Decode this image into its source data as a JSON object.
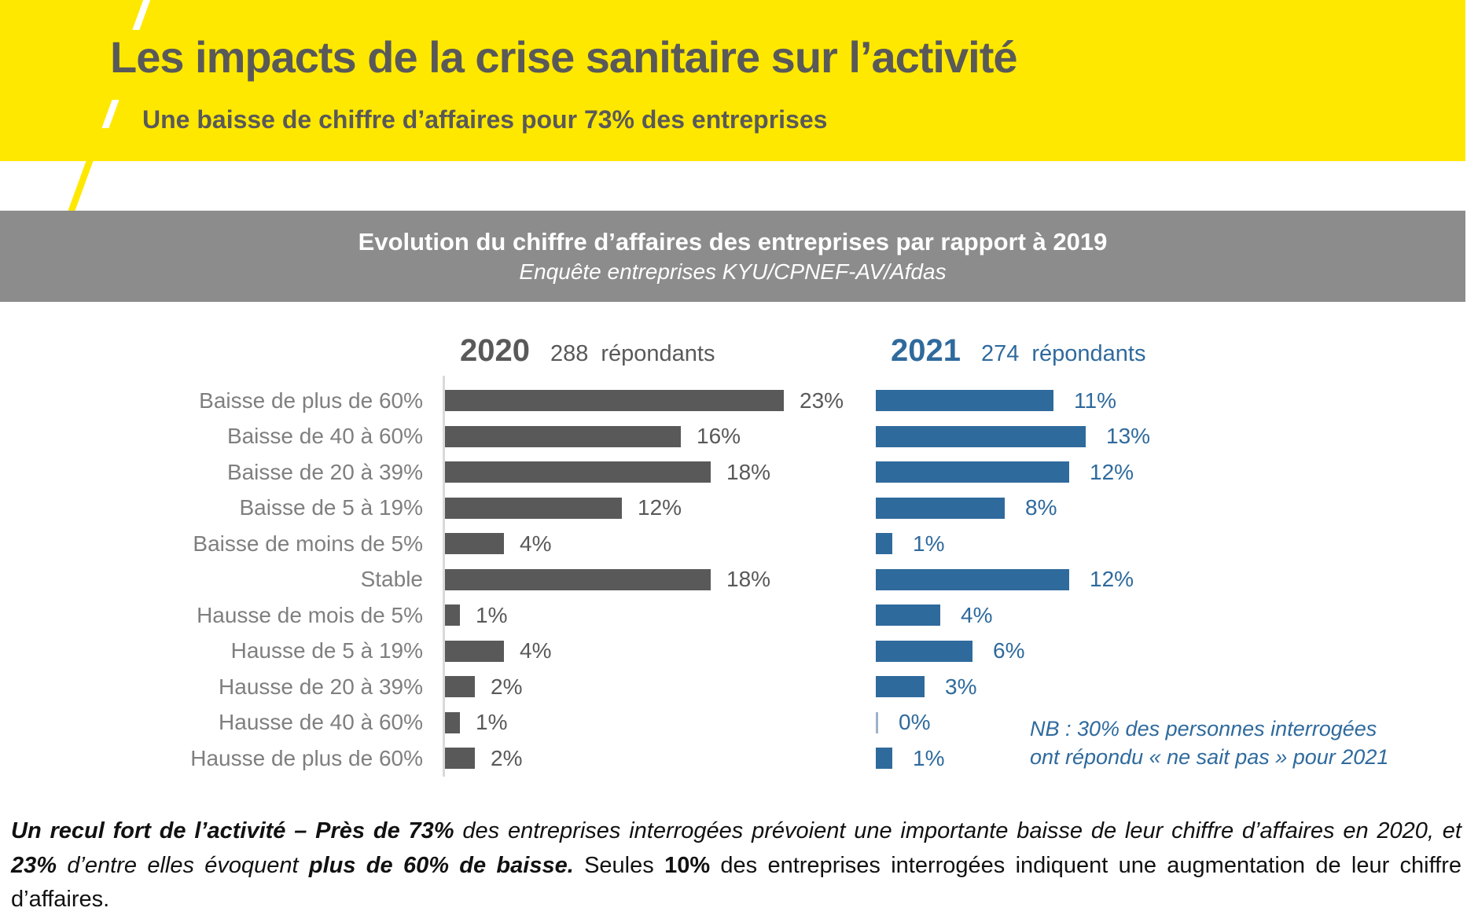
{
  "header": {
    "title": "Les impacts de la crise sanitaire sur l’activité",
    "subtitle": "Une baisse de chiffre d’affaires pour 73% des entreprises"
  },
  "banner": {
    "title": "Evolution du chiffre d’affaires des entreprises par rapport à 2019",
    "subtitle": "Enquête entreprises KYU/CPNEF-AV/Afdas"
  },
  "columns": {
    "y2020": {
      "year": "2020",
      "count": "288",
      "unit": "répondants"
    },
    "y2021": {
      "year": "2021",
      "count": "274",
      "unit": "répondants"
    }
  },
  "note": {
    "line1": "NB : 30% des personnes interrogées",
    "line2": "ont répondu « ne sait pas » pour 2021"
  },
  "chart_data": {
    "type": "bar",
    "orientation": "horizontal",
    "title": "Evolution du chiffre d’affaires des entreprises par rapport à 2019",
    "subtitle": "Enquête entreprises KYU/CPNEF-AV/Afdas",
    "value_suffix": "%",
    "categories": [
      "Baisse de plus de 60%",
      "Baisse de 40 à 60%",
      "Baisse de 20 à 39%",
      "Baisse de 5 à 19%",
      "Baisse de moins de 5%",
      "Stable",
      "Hausse de mois de 5%",
      "Hausse de 5 à 19%",
      "Hausse de 20 à 39%",
      "Hausse de 40 à 60%",
      "Hausse de plus de 60%"
    ],
    "series": [
      {
        "name": "2020",
        "respondents": 288,
        "color": "#595959",
        "values": [
          23,
          16,
          18,
          12,
          4,
          18,
          1,
          4,
          2,
          1,
          2
        ]
      },
      {
        "name": "2021",
        "respondents": 274,
        "color": "#2F6A9D",
        "values": [
          11,
          13,
          12,
          8,
          1,
          12,
          4,
          6,
          3,
          0,
          1
        ]
      }
    ],
    "annotation": "NB : 30% des personnes interrogées ont répondu « ne sait pas » pour 2021",
    "legend_position": "top",
    "grid": false
  },
  "colors": {
    "accent_yellow": "#FFE800",
    "dark_gray": "#595959",
    "banner_gray": "#8C8C8C",
    "blue": "#2F6A9D",
    "label_gray": "#7F7F7F"
  },
  "footer": {
    "segments": [
      {
        "style": "bold-italic",
        "text": "Un recul fort de l’activité – Près de 73% "
      },
      {
        "style": "italic",
        "text": "des entreprises interrogées prévoient une importante baisse de leur chiffre d’affaires en 2020, et "
      },
      {
        "style": "bold-italic",
        "text": "23% "
      },
      {
        "style": "italic",
        "text": "d’entre elles évoquent "
      },
      {
        "style": "bold-italic",
        "text": "plus de 60% de baisse. "
      },
      {
        "style": "normal",
        "text": "Seules "
      },
      {
        "style": "bold",
        "text": "10% "
      },
      {
        "style": "normal",
        "text": "des entreprises interrogées indiquent une augmentation de leur chiffre d’affaires."
      }
    ]
  }
}
